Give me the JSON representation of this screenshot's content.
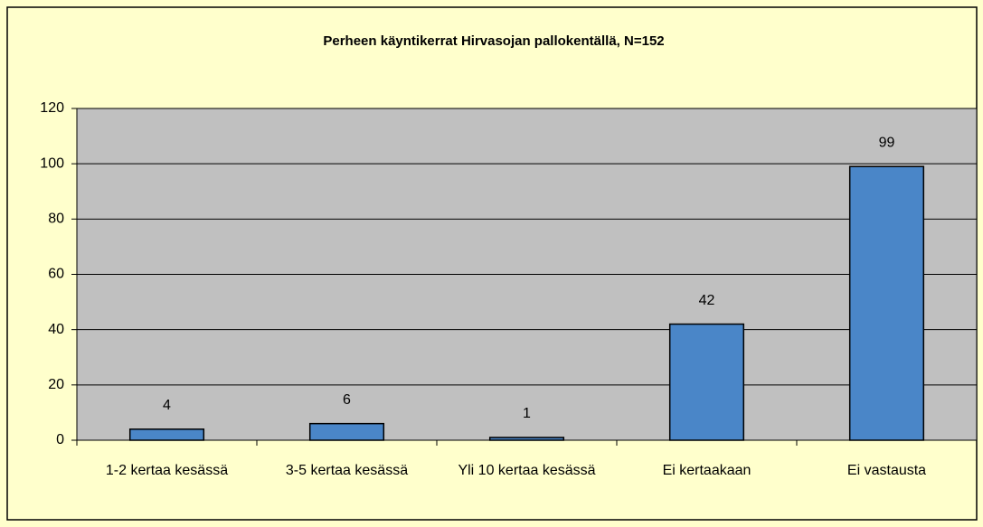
{
  "chart_data": {
    "type": "bar",
    "title": "Perheen käyntikerrat Hirvasojan pallokentällä, N=152",
    "categories": [
      "1-2 kertaa kesässä",
      "3-5 kertaa kesässä",
      "Yli 10 kertaa kesässä",
      "Ei kertaakaan",
      "Ei vastausta"
    ],
    "values": [
      4,
      6,
      1,
      42,
      99
    ],
    "color": "#4a86c8",
    "ylim": [
      0,
      120
    ],
    "yticks": [
      0,
      20,
      40,
      60,
      80,
      100,
      120
    ],
    "grid": true
  }
}
